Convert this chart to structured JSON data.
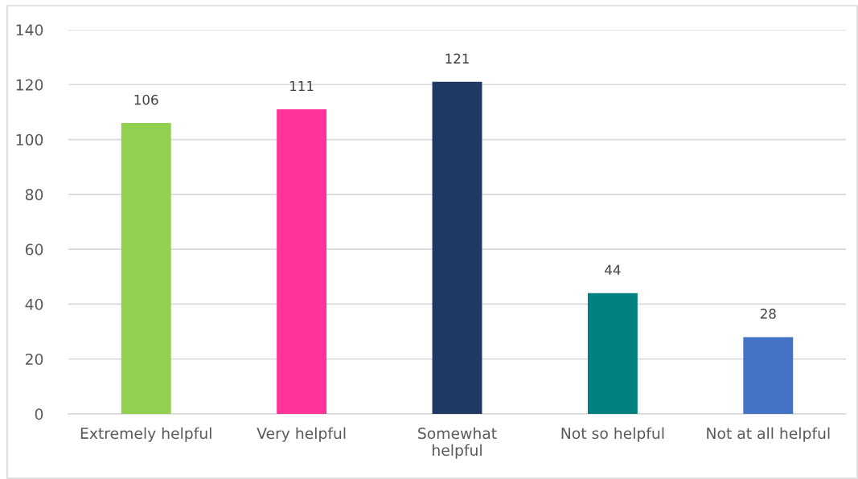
{
  "chart_data": {
    "type": "bar",
    "categories": [
      "Extremely helpful",
      "Very helpful",
      "Somewhat\nhelpful",
      "Not so helpful",
      "Not at all helpful"
    ],
    "values": [
      106,
      111,
      121,
      44,
      28
    ],
    "colors": [
      "#92d050",
      "#ff3399",
      "#1f3864",
      "#008080",
      "#4472c4"
    ],
    "ylim": [
      0,
      140
    ],
    "yticks": [
      0,
      20,
      40,
      60,
      80,
      100,
      120,
      140
    ],
    "grid": "y",
    "data_labels": true
  }
}
